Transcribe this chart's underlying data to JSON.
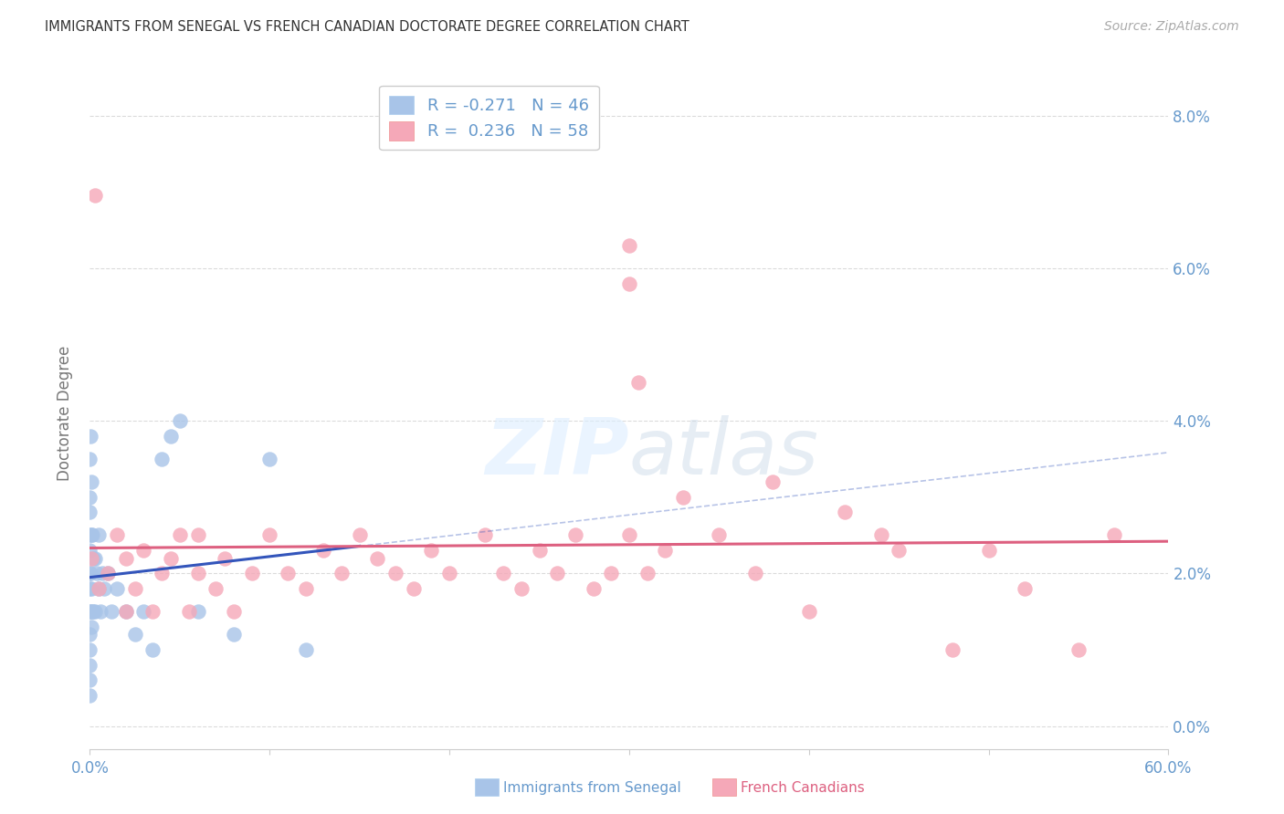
{
  "title": "IMMIGRANTS FROM SENEGAL VS FRENCH CANADIAN DOCTORATE DEGREE CORRELATION CHART",
  "source": "Source: ZipAtlas.com",
  "ylabel": "Doctorate Degree",
  "xlim": [
    0.0,
    60.0
  ],
  "ylim": [
    -0.3,
    8.5
  ],
  "yticks": [
    0.0,
    2.0,
    4.0,
    6.0,
    8.0
  ],
  "series1_color": "#a8c4e8",
  "series2_color": "#f5a8b8",
  "trendline1_color": "#3355bb",
  "trendline2_color": "#dd6080",
  "axis_color": "#6699cc",
  "grid_color": "#cccccc",
  "background_color": "#ffffff",
  "title_color": "#333333",
  "source_color": "#aaaaaa",
  "series1_label": "Immigrants from Senegal",
  "series2_label": "French Canadians",
  "series1_R": -0.271,
  "series1_N": 46,
  "series2_R": 0.236,
  "series2_N": 58,
  "blue_x": [
    0.0,
    0.0,
    0.0,
    0.0,
    0.0,
    0.0,
    0.0,
    0.0,
    0.0,
    0.0,
    0.0,
    0.0,
    0.0,
    0.05,
    0.05,
    0.05,
    0.1,
    0.1,
    0.1,
    0.1,
    0.15,
    0.15,
    0.2,
    0.2,
    0.3,
    0.3,
    0.4,
    0.5,
    0.5,
    0.6,
    0.7,
    0.8,
    1.0,
    1.2,
    1.5,
    2.0,
    2.5,
    3.0,
    3.5,
    4.0,
    4.5,
    5.0,
    6.0,
    8.0,
    10.0,
    12.0
  ],
  "blue_y": [
    0.4,
    0.6,
    0.8,
    1.0,
    1.2,
    1.5,
    1.8,
    2.0,
    2.3,
    2.5,
    2.8,
    3.0,
    3.5,
    1.5,
    2.0,
    3.8,
    1.3,
    1.8,
    2.5,
    3.2,
    1.5,
    2.5,
    1.5,
    2.2,
    1.5,
    2.2,
    2.0,
    1.8,
    2.5,
    1.5,
    2.0,
    1.8,
    2.0,
    1.5,
    1.8,
    1.5,
    1.2,
    1.5,
    1.0,
    3.5,
    3.8,
    4.0,
    1.5,
    1.2,
    3.5,
    1.0
  ],
  "pink_x": [
    0.1,
    0.5,
    1.0,
    1.5,
    2.0,
    2.0,
    2.5,
    3.0,
    3.5,
    4.0,
    4.5,
    5.0,
    5.5,
    6.0,
    6.0,
    7.0,
    7.5,
    8.0,
    9.0,
    10.0,
    11.0,
    12.0,
    13.0,
    14.0,
    15.0,
    16.0,
    17.0,
    18.0,
    19.0,
    20.0,
    22.0,
    23.0,
    24.0,
    25.0,
    26.0,
    27.0,
    28.0,
    29.0,
    30.0,
    31.0,
    32.0,
    33.0,
    35.0,
    37.0,
    38.0,
    40.0,
    42.0,
    44.0,
    45.0,
    48.0,
    50.0,
    52.0,
    55.0,
    57.0,
    30.0,
    30.0,
    30.5,
    0.3
  ],
  "pink_y": [
    2.2,
    1.8,
    2.0,
    2.5,
    1.5,
    2.2,
    1.8,
    2.3,
    1.5,
    2.0,
    2.2,
    2.5,
    1.5,
    2.0,
    2.5,
    1.8,
    2.2,
    1.5,
    2.0,
    2.5,
    2.0,
    1.8,
    2.3,
    2.0,
    2.5,
    2.2,
    2.0,
    1.8,
    2.3,
    2.0,
    2.5,
    2.0,
    1.8,
    2.3,
    2.0,
    2.5,
    1.8,
    2.0,
    2.5,
    2.0,
    2.3,
    3.0,
    2.5,
    2.0,
    3.2,
    1.5,
    2.8,
    2.5,
    2.3,
    1.0,
    2.3,
    1.8,
    1.0,
    2.5,
    6.3,
    5.8,
    4.5,
    6.95
  ]
}
